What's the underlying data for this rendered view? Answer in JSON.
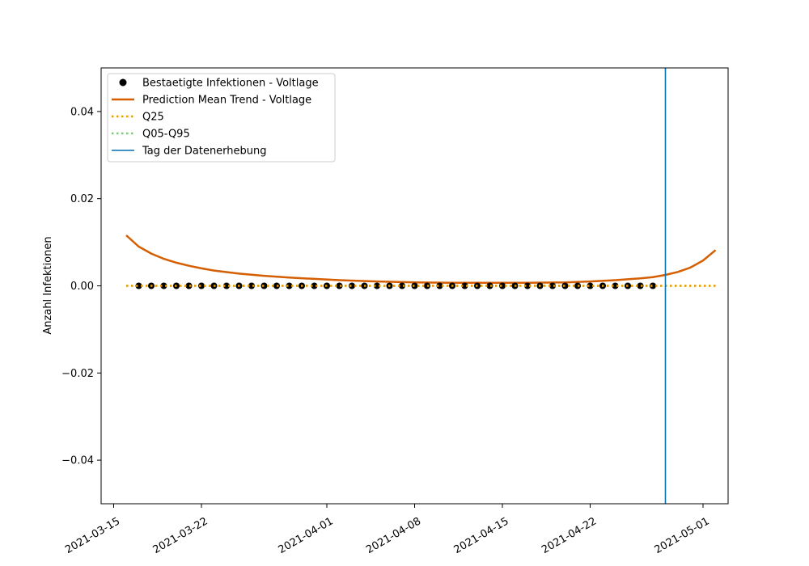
{
  "chart_data": {
    "type": "line",
    "title": "",
    "xlabel": "",
    "ylabel": "Anzahl Infektionen",
    "ylim": [
      -0.05,
      0.05
    ],
    "xlim": [
      "2021-03-14",
      "2021-05-03"
    ],
    "x_ticks": [
      "2021-03-15",
      "2021-03-22",
      "2021-04-01",
      "2021-04-08",
      "2021-04-15",
      "2021-04-22",
      "2021-05-01"
    ],
    "y_ticks": [
      -0.04,
      -0.02,
      0.0,
      0.02,
      0.04
    ],
    "y_tick_labels": [
      "−0.04",
      "−0.02",
      "0.00",
      "0.02",
      "0.04"
    ],
    "grid": false,
    "legend_position": "top-left",
    "series": [
      {
        "name": "Bestaetigte Infektionen - Voltlage",
        "kind": "scatter",
        "color": "#000000",
        "x": [
          "2021-03-17",
          "2021-03-18",
          "2021-03-19",
          "2021-03-20",
          "2021-03-21",
          "2021-03-22",
          "2021-03-23",
          "2021-03-24",
          "2021-03-25",
          "2021-03-26",
          "2021-03-27",
          "2021-03-28",
          "2021-03-29",
          "2021-03-30",
          "2021-03-31",
          "2021-04-01",
          "2021-04-02",
          "2021-04-03",
          "2021-04-04",
          "2021-04-05",
          "2021-04-06",
          "2021-04-07",
          "2021-04-08",
          "2021-04-09",
          "2021-04-10",
          "2021-04-11",
          "2021-04-12",
          "2021-04-13",
          "2021-04-14",
          "2021-04-15",
          "2021-04-16",
          "2021-04-17",
          "2021-04-18",
          "2021-04-19",
          "2021-04-20",
          "2021-04-21",
          "2021-04-22",
          "2021-04-23",
          "2021-04-24",
          "2021-04-25",
          "2021-04-26",
          "2021-04-27"
        ],
        "y": [
          0,
          0,
          0,
          0,
          0,
          0,
          0,
          0,
          0,
          0,
          0,
          0,
          0,
          0,
          0,
          0,
          0,
          0,
          0,
          0,
          0,
          0,
          0,
          0,
          0,
          0,
          0,
          0,
          0,
          0,
          0,
          0,
          0,
          0,
          0,
          0,
          0,
          0,
          0,
          0,
          0,
          0
        ]
      },
      {
        "name": "Prediction Mean Trend - Voltlage",
        "kind": "line",
        "color": "#d55e00",
        "x": [
          "2021-03-16",
          "2021-03-17",
          "2021-03-18",
          "2021-03-19",
          "2021-03-20",
          "2021-03-21",
          "2021-03-22",
          "2021-03-23",
          "2021-03-25",
          "2021-03-27",
          "2021-03-29",
          "2021-03-31",
          "2021-04-02",
          "2021-04-05",
          "2021-04-08",
          "2021-04-11",
          "2021-04-14",
          "2021-04-17",
          "2021-04-20",
          "2021-04-22",
          "2021-04-24",
          "2021-04-26",
          "2021-04-27",
          "2021-04-28",
          "2021-04-29",
          "2021-04-30",
          "2021-05-01",
          "2021-05-02"
        ],
        "y": [
          0.0116,
          0.009,
          0.0074,
          0.0062,
          0.0053,
          0.0046,
          0.004,
          0.0035,
          0.0028,
          0.0023,
          0.0019,
          0.0016,
          0.0013,
          0.001,
          0.0008,
          0.0007,
          0.0007,
          0.0007,
          0.0008,
          0.001,
          0.0013,
          0.0017,
          0.002,
          0.0025,
          0.0032,
          0.0042,
          0.0058,
          0.0082
        ]
      },
      {
        "name": "Q25",
        "kind": "dotted-line",
        "color": "#e69f00",
        "x": [
          "2021-03-16",
          "2021-05-02"
        ],
        "y": [
          0,
          0
        ]
      },
      {
        "name": "Q05-Q95",
        "kind": "dotted-line",
        "color": "#7fc97f",
        "x": [],
        "y": []
      },
      {
        "name": "Tag der Datenerhebung",
        "kind": "vline",
        "color": "#0072b2",
        "x": [
          "2021-04-28"
        ]
      }
    ]
  }
}
